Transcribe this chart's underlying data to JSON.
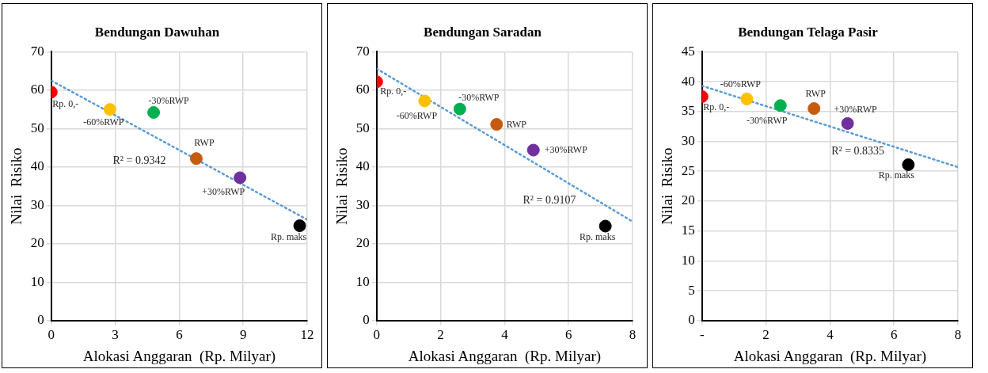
{
  "chart_data": [
    {
      "type": "scatter",
      "title": "Bendungan Dawuhan",
      "xlabel": "Alokasi Anggaran  (Rp. Milyar)",
      "ylabel": "Nilai  Risiko",
      "x": [
        0,
        2.75,
        4.8,
        6.8,
        8.85,
        11.65
      ],
      "series": [
        {
          "colors": [
            "#ff0000",
            "#ffc000",
            "#00b050",
            "#c55a11",
            "#7030a0",
            "#000000"
          ],
          "values": [
            59.5,
            55,
            54.2,
            42.2,
            37.2,
            24.7
          ]
        },
        {
          "type": "line",
          "x": [
            0,
            12
          ],
          "values": [
            62.5,
            26.3
          ],
          "color": "#5b9bd5",
          "line_style": "dotted",
          "marker": "none"
        }
      ],
      "xlim": [
        0,
        12
      ],
      "xticks": [
        0,
        3,
        6,
        9,
        12
      ],
      "ylim": [
        0,
        70
      ],
      "yticks": [
        0,
        10,
        20,
        30,
        40,
        50,
        60,
        70
      ],
      "grid": true,
      "legend": false,
      "marker": "circle",
      "annotations": [
        {
          "text": "Rp. 0,-",
          "x": 0,
          "y": 59.5
        },
        {
          "text": "-60%RWP",
          "x": 2.75,
          "y": 55
        },
        {
          "text": "-30%RWP",
          "x": 4.8,
          "y": 54.2
        },
        {
          "text": "RWP",
          "x": 6.8,
          "y": 42.2
        },
        {
          "text": "+30%RWP",
          "x": 8.85,
          "y": 37.2
        },
        {
          "text": "Rp. maks",
          "x": 11.65,
          "y": 24.7
        },
        "R² = 0.9342"
      ]
    },
    {
      "type": "scatter",
      "title": "Bendungan Saradan",
      "xlabel": "Alokasi Anggaran  (Rp. Milyar)",
      "ylabel": "Nilai  Risiko",
      "x": [
        0,
        1.5,
        2.6,
        3.75,
        4.9,
        7.15
      ],
      "series": [
        {
          "colors": [
            "#ff0000",
            "#ffc000",
            "#00b050",
            "#c55a11",
            "#7030a0",
            "#000000"
          ],
          "values": [
            62.2,
            57.2,
            55.1,
            51.1,
            44.4,
            24.6
          ]
        },
        {
          "type": "line",
          "x": [
            0,
            8
          ],
          "values": [
            65.6,
            25.8
          ],
          "color": "#5b9bd5",
          "line_style": "dotted",
          "marker": "none"
        }
      ],
      "xlim": [
        0,
        8
      ],
      "xticks": [
        0,
        2,
        4,
        6,
        8
      ],
      "ylim": [
        0,
        70
      ],
      "yticks": [
        0,
        10,
        20,
        30,
        40,
        50,
        60,
        70
      ],
      "grid": true,
      "legend": false,
      "marker": "circle",
      "annotations": [
        {
          "text": "Rp. 0,-",
          "x": 0,
          "y": 62.2
        },
        {
          "text": "-60%RWP",
          "x": 1.5,
          "y": 57.2
        },
        {
          "text": "-30%RWP",
          "x": 2.6,
          "y": 55.1
        },
        {
          "text": "RWP",
          "x": 3.75,
          "y": 51.1
        },
        {
          "text": "+30%RWP",
          "x": 4.9,
          "y": 44.4
        },
        {
          "text": "Rp. maks",
          "x": 7.15,
          "y": 24.6
        },
        "R² = 0.9107"
      ]
    },
    {
      "type": "scatter",
      "title": "Bendungan Telaga Pasir",
      "xlabel": "Alokasi Anggaran  (Rp. Milyar)",
      "ylabel": "Nilai  Risiko",
      "x": [
        0,
        1.4,
        2.45,
        3.5,
        4.55,
        6.45
      ],
      "series": [
        {
          "colors": [
            "#ff0000",
            "#ffc000",
            "#00b050",
            "#c55a11",
            "#7030a0",
            "#000000"
          ],
          "values": [
            37.5,
            37.1,
            36,
            35.5,
            33,
            26.1
          ]
        },
        {
          "type": "line",
          "x": [
            0,
            8
          ],
          "values": [
            39.3,
            25.7
          ],
          "color": "#5b9bd5",
          "line_style": "dotted",
          "marker": "none"
        }
      ],
      "xlim": [
        0,
        8
      ],
      "xticks": [
        {
          "value": 0,
          "label": "-"
        },
        2,
        4,
        6,
        8
      ],
      "ylim": [
        0,
        45
      ],
      "yticks": [
        0,
        5,
        10,
        15,
        20,
        25,
        30,
        35,
        40,
        45
      ],
      "grid": true,
      "legend": false,
      "marker": "circle",
      "annotations": [
        {
          "text": "Rp. 0,-",
          "x": 0,
          "y": 37.5
        },
        {
          "text": "-60%RWP",
          "x": 1.4,
          "y": 37.1
        },
        {
          "text": "-30%RWP",
          "x": 2.45,
          "y": 36
        },
        {
          "text": "RWP",
          "x": 3.5,
          "y": 35.5
        },
        {
          "text": "+30%RWP",
          "x": 4.55,
          "y": 33
        },
        {
          "text": "Rp. maks",
          "x": 6.45,
          "y": 26.1
        },
        "R² = 0.8335"
      ]
    }
  ]
}
